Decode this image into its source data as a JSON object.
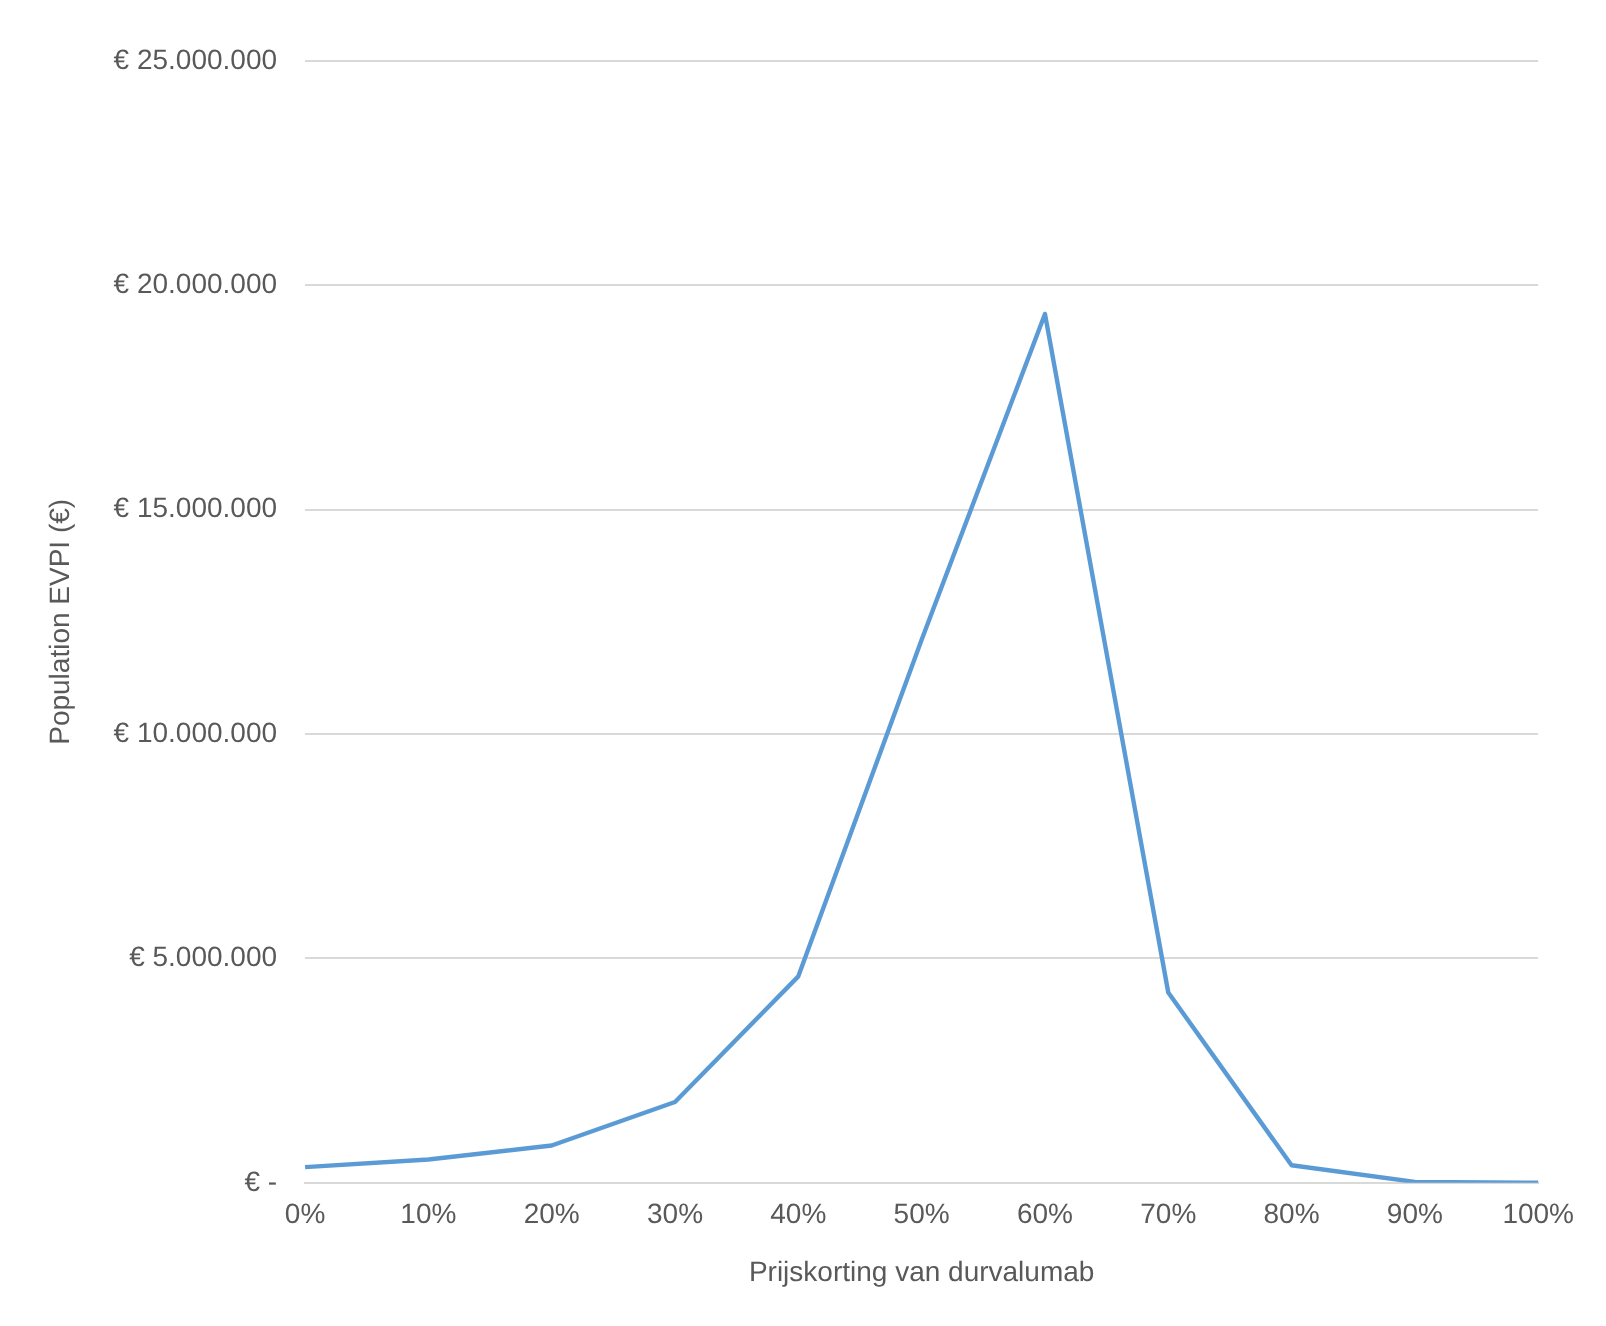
{
  "chart_data": {
    "type": "line",
    "xlabel": "Prijskorting van durvalumab",
    "ylabel": "Population EVPI (€)",
    "categories": [
      "0%",
      "10%",
      "20%",
      "30%",
      "40%",
      "50%",
      "60%",
      "70%",
      "80%",
      "90%",
      "100%"
    ],
    "series": [
      {
        "color": "#5b9bd5",
        "values": [
          350000,
          520000,
          830000,
          1800000,
          4600000,
          12100000,
          19360000,
          4240000,
          390000,
          20000,
          0
        ]
      }
    ],
    "ylim": [
      0,
      25000000
    ],
    "yticks": [
      {
        "value": 0,
        "label": "€ -"
      },
      {
        "value": 5000000,
        "label": "€ 5.000.000"
      },
      {
        "value": 10000000,
        "label": "€ 10.000.000"
      },
      {
        "value": 15000000,
        "label": "€ 15.000.000"
      },
      {
        "value": 20000000,
        "label": "€ 20.000.000"
      },
      {
        "value": 25000000,
        "label": "€ 25.000.000"
      }
    ],
    "grid": "y",
    "legend": false,
    "marker": "none",
    "line_style": "solid"
  }
}
